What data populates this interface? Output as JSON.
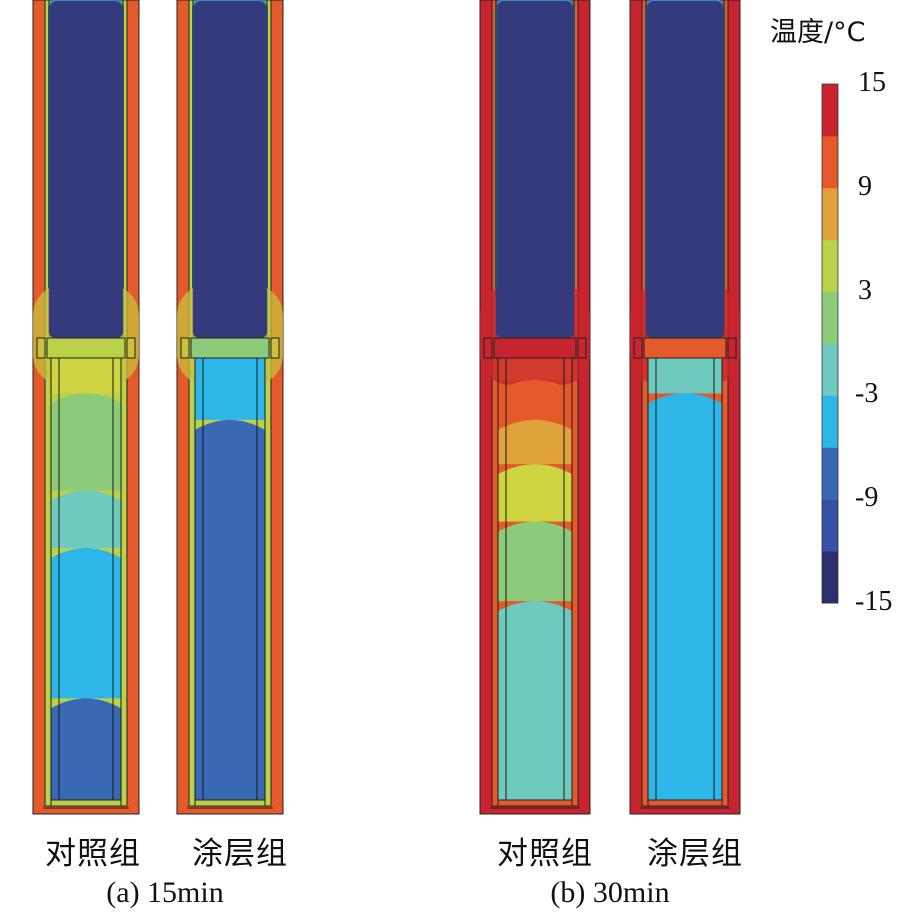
{
  "panels": [
    {
      "caption": "(a) 15min",
      "tubes": [
        {
          "label": "对照组",
          "wall_color": "#e55a2b",
          "collar_color": "#c8c23c",
          "plug_color": "#b9d249",
          "bottom_color": "#b9d249",
          "bands": [
            {
              "color": "#cfd541"
            },
            {
              "color": "#8ccb7a"
            },
            {
              "color": "#6ec9be"
            },
            {
              "color": "#2db7e8"
            },
            {
              "color": "#3968b4"
            }
          ]
        },
        {
          "label": "涂层组",
          "wall_color": "#e55a2b",
          "collar_color": "#c8c23c",
          "plug_color": "#8ccb7a",
          "bottom_color": "#b9d249",
          "bands": [
            {
              "color": "#2db7e8"
            },
            {
              "color": "#3968b4"
            }
          ]
        }
      ]
    },
    {
      "caption": "(b) 30min",
      "tubes": [
        {
          "label": "对照组",
          "wall_color": "#c7242f",
          "collar_color": "#c7242f",
          "plug_color": "#c7242f",
          "bottom_color": "#e55a2b",
          "bands": [
            {
              "color": "#d23a2e"
            },
            {
              "color": "#e55a2b"
            },
            {
              "color": "#e0a23a"
            },
            {
              "color": "#cfd541"
            },
            {
              "color": "#8ccb7a"
            },
            {
              "color": "#6ec9be"
            }
          ]
        },
        {
          "label": "涂层组",
          "wall_color": "#c7242f",
          "collar_color": "#c7242f",
          "plug_color": "#e55a2b",
          "bottom_color": "#e55a2b",
          "bands": [
            {
              "color": "#6ec9be"
            },
            {
              "color": "#2db7e8"
            }
          ]
        }
      ]
    }
  ],
  "ice_color": "#343a7b",
  "colorbar": {
    "title": "温度/°C",
    "min": -15,
    "max": 15,
    "colors": [
      "#2b2f6e",
      "#3551a8",
      "#3968b4",
      "#2db7e8",
      "#6ec9be",
      "#8ccb7a",
      "#b9d249",
      "#e0a23a",
      "#e55a2b",
      "#c7242f"
    ],
    "ticks": [
      "15",
      "9",
      "3",
      "-3",
      "-9",
      "-15"
    ]
  }
}
